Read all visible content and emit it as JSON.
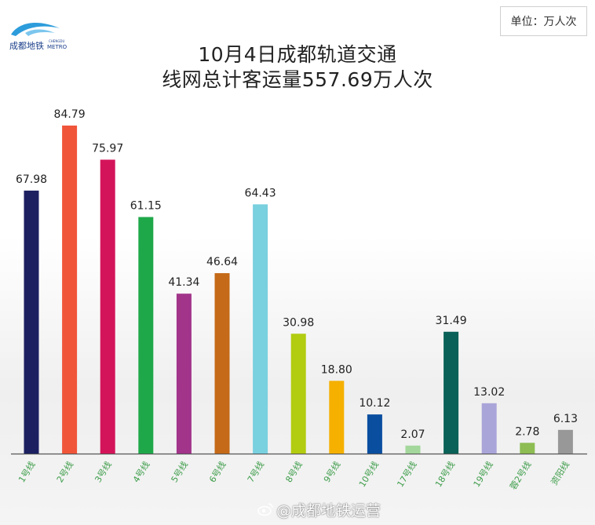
{
  "logo": {
    "name_cn": "成都地铁",
    "name_en_top": "CHENGDU",
    "name_en": "METRO"
  },
  "unit_label": "单位：万人次",
  "title_lines": [
    "10月4日成都轨道交通",
    "线网总计客运量557.69万人次"
  ],
  "watermark": "@成都地铁运营",
  "colors": {
    "axis": "#555555",
    "label_text": "#222222",
    "tick_text": "#3e9d4a"
  },
  "chart_data": {
    "type": "bar",
    "title": "10月4日成都轨道交通线网总计客运量557.69万人次",
    "unit": "万人次",
    "ylim": [
      0,
      90
    ],
    "grid": false,
    "categories": [
      "1号线",
      "2号线",
      "3号线",
      "4号线",
      "5号线",
      "6号线",
      "7号线",
      "8号线",
      "9号线",
      "10号线",
      "17号线",
      "18号线",
      "19号线",
      "蓉2号线",
      "资阳线"
    ],
    "tick_labels": [
      "1号线",
      "2号线",
      "3号线",
      "4号线",
      "5号线",
      "6号线",
      "7号线",
      "8号线",
      "9号线",
      "10号线",
      "17号线",
      "18号线",
      "19号线",
      "蓉2号线",
      "资阳线"
    ],
    "values": [
      67.98,
      84.79,
      75.97,
      61.15,
      41.34,
      46.64,
      64.43,
      30.98,
      18.8,
      10.12,
      2.07,
      31.49,
      13.02,
      2.78,
      6.13
    ],
    "value_labels": [
      "67.98",
      "84.79",
      "75.97",
      "61.15",
      "41.34",
      "46.64",
      "64.43",
      "30.98",
      "18.80",
      "10.12",
      "2.07",
      "31.49",
      "13.02",
      "2.78",
      "6.13"
    ],
    "bar_colors": [
      "#1c2060",
      "#f0553a",
      "#d4145a",
      "#1fa84a",
      "#a2348a",
      "#c56a18",
      "#79d0df",
      "#b2cc10",
      "#f5b000",
      "#0a4ea0",
      "#a3d79b",
      "#0a6157",
      "#aaa5d9",
      "#8dbd53",
      "#989898"
    ]
  }
}
